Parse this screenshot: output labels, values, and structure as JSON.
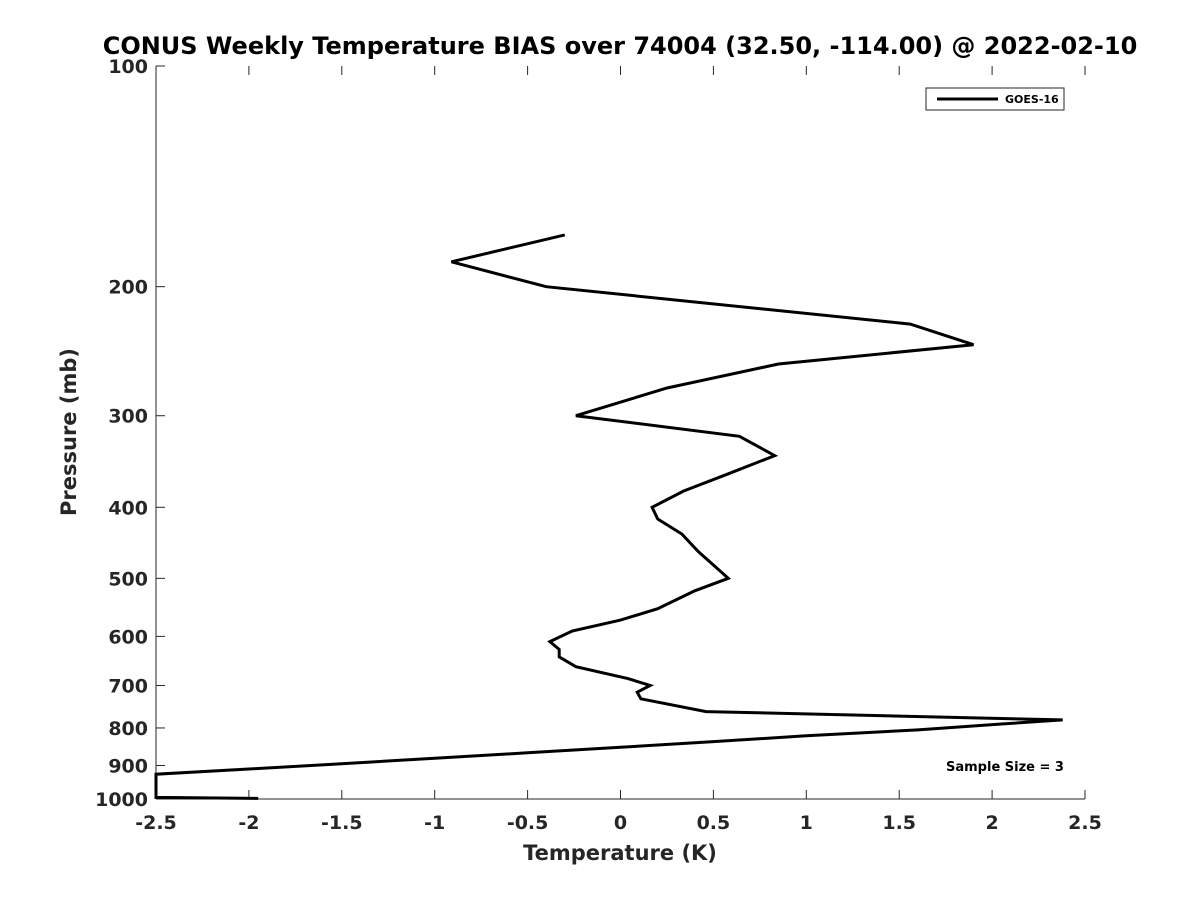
{
  "chart_data": {
    "type": "line",
    "title": "CONUS Weekly Temperature BIAS over 74004 (32.50, -114.00) @ 2022-02-10",
    "xlabel": "Temperature (K)",
    "ylabel": "Pressure (mb)",
    "xlim": [
      -2.5,
      2.5
    ],
    "ylim": [
      100,
      1000
    ],
    "y_scale": "log",
    "y_reversed": true,
    "x_ticks": [
      -2.5,
      -2,
      -1.5,
      -1,
      -0.5,
      0,
      0.5,
      1,
      1.5,
      2,
      2.5
    ],
    "x_tick_labels": [
      "-2.5",
      "-2",
      "-1.5",
      "-1",
      "-0.5",
      "0",
      "0.5",
      "1",
      "1.5",
      "2",
      "2.5"
    ],
    "y_ticks": [
      100,
      200,
      300,
      400,
      500,
      600,
      700,
      800,
      900,
      1000
    ],
    "y_tick_labels": [
      "100",
      "200",
      "300",
      "400",
      "500",
      "600",
      "700",
      "800",
      "900",
      "1000"
    ],
    "grid": false,
    "legend_position": "top-right",
    "annotation": "Sample Size = 3",
    "series": [
      {
        "name": "GOES-16",
        "color": "#000000",
        "x": [
          -0.3,
          -0.91,
          -0.4,
          1.56,
          1.9,
          0.85,
          0.25,
          -0.24,
          0.64,
          0.83,
          0.58,
          0.34,
          0.17,
          0.2,
          0.33,
          0.42,
          0.58,
          0.4,
          0.2,
          0.0,
          -0.26,
          -0.38,
          -0.33,
          -0.33,
          -0.24,
          0.04,
          0.16,
          0.09,
          0.11,
          0.46,
          2.38,
          2.05,
          1.6,
          1.0,
          0.5,
          0.0,
          -0.5,
          -1.0,
          -1.5,
          -2.0,
          -2.5,
          -2.5,
          -1.95
        ],
        "y": [
          170,
          185,
          200,
          225,
          240,
          255,
          275,
          300,
          320,
          340,
          360,
          380,
          400,
          415,
          435,
          460,
          500,
          520,
          550,
          570,
          590,
          610,
          625,
          640,
          660,
          685,
          700,
          715,
          730,
          760,
          780,
          790,
          805,
          820,
          835,
          850,
          865,
          880,
          895,
          910,
          925,
          995,
          998
        ]
      }
    ]
  }
}
